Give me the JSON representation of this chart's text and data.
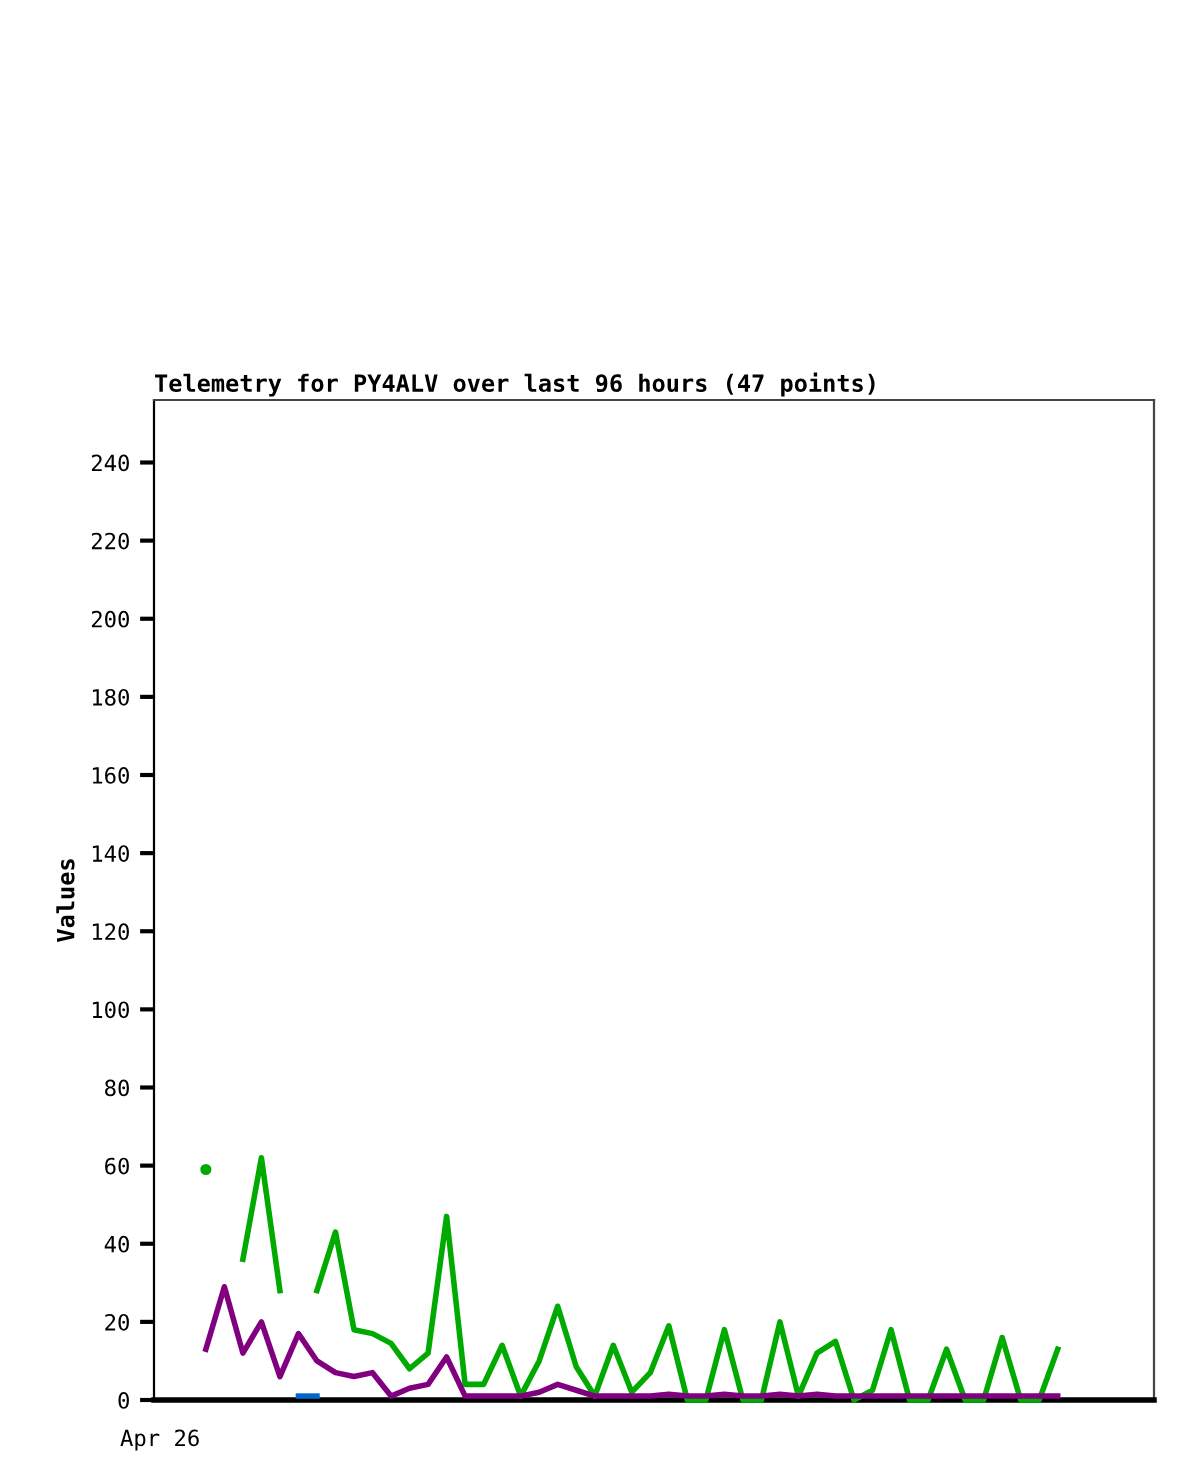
{
  "chart_data": {
    "type": "line",
    "title": "Telemetry for PY4ALV over last 96 hours (47 points)",
    "ylabel": "Values",
    "categories": [
      null,
      null,
      null,
      null,
      null,
      null,
      null,
      null,
      null,
      null,
      null,
      null,
      null,
      null,
      null,
      null,
      null,
      null,
      null,
      null,
      null,
      null,
      null,
      null,
      null,
      null,
      null,
      null,
      null,
      null,
      null,
      null,
      null,
      null,
      null,
      null,
      null,
      null,
      null,
      null,
      null,
      null,
      null,
      null,
      null,
      null,
      null
    ],
    "annotations": [
      "Apr 26"
    ],
    "ylim": [
      0,
      256
    ],
    "yticks": [
      0,
      20,
      40,
      60,
      80,
      100,
      120,
      140,
      160,
      180,
      200,
      220,
      240
    ],
    "grid": false,
    "legend": false,
    "marker": "none",
    "line_style": "solid",
    "series": [
      {
        "color": "#00aa00",
        "values": [
          59,
          null,
          36,
          62,
          28,
          null,
          28,
          43,
          18,
          17,
          14.5,
          8,
          12,
          47,
          4,
          4,
          14,
          1,
          10,
          24,
          8.5,
          1,
          14,
          2,
          7,
          19,
          0,
          0,
          18,
          0,
          0,
          20,
          1,
          12,
          15,
          0,
          2.5,
          18,
          0,
          0,
          13,
          0,
          0,
          16,
          0,
          0,
          13
        ]
      },
      {
        "color": "#800080",
        "values": [
          13,
          29,
          12,
          20,
          6,
          17,
          10,
          7,
          6,
          7,
          1,
          3,
          4,
          11,
          1,
          1,
          1,
          1,
          2,
          4,
          2.5,
          1,
          1,
          1,
          1,
          1.5,
          1,
          1,
          1.5,
          1,
          1,
          1.5,
          1,
          1.5,
          1,
          1,
          1,
          1,
          1,
          1,
          1,
          1,
          1,
          1,
          1,
          1,
          1
        ]
      },
      {
        "color": "#0066cc",
        "values": [
          null,
          null,
          null,
          null,
          null,
          1,
          1,
          null,
          null,
          null,
          null,
          null,
          null,
          null,
          null,
          null,
          null,
          null,
          null,
          null,
          null,
          null,
          null,
          null,
          null,
          null,
          null,
          null,
          null,
          null,
          null,
          null,
          null,
          null,
          null,
          null,
          null,
          null,
          null,
          null,
          null,
          null,
          null,
          null,
          null,
          null,
          null
        ]
      }
    ]
  }
}
